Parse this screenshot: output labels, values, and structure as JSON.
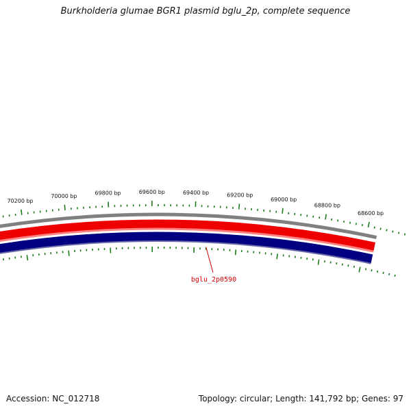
{
  "title": "Burkholderia glumae BGR1 plasmid bglu_2p, complete sequence",
  "footer": {
    "accession": "Accession: NC_012718",
    "summary": "Topology: circular; Length: 141,792 bp; Genes: 97"
  },
  "scale": {
    "labels": [
      "70200 bp",
      "70000 bp",
      "69800 bp",
      "69600 bp",
      "69400 bp",
      "69200 bp",
      "69000 bp",
      "68800 bp",
      "68600 bp"
    ]
  },
  "genes": [
    {
      "name": "bglu_2p0590"
    }
  ],
  "colors": {
    "outer_ring": "#808080",
    "forward_strand": "#ee0000",
    "reverse_strand": "#000080",
    "ticks": "#1a7a1a",
    "gene_label": "#cc0000"
  }
}
